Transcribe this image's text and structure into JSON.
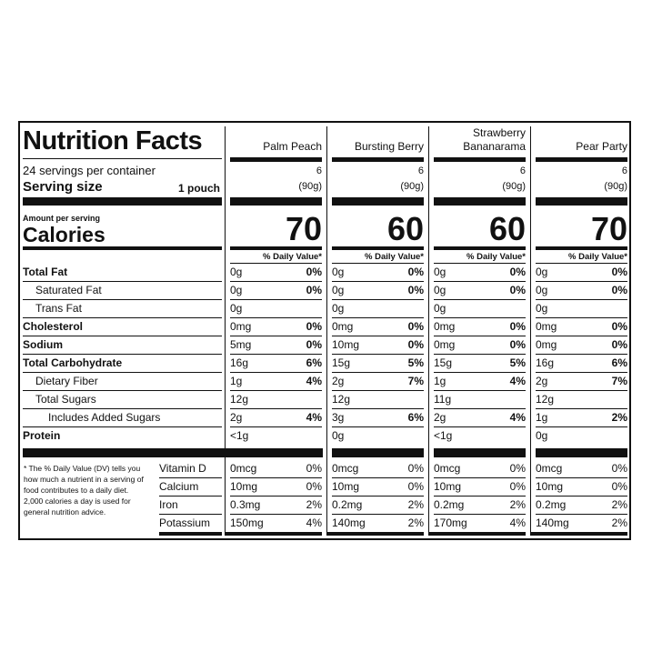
{
  "title": "Nutrition Facts",
  "servings_per_container": "24 servings per container",
  "serving_size_label": "Serving size",
  "serving_size_value": "1 pouch",
  "amount_per_serving": "Amount per serving",
  "calories_label": "Calories",
  "dv_header": "% Daily Value*",
  "nutrients": [
    {
      "label": "Total Fat",
      "bold": true,
      "indent": 0
    },
    {
      "label": "Saturated Fat",
      "bold": false,
      "indent": 1
    },
    {
      "label": "Trans Fat",
      "bold": false,
      "indent": 1
    },
    {
      "label": "Cholesterol",
      "bold": true,
      "indent": 0
    },
    {
      "label": "Sodium",
      "bold": true,
      "indent": 0
    },
    {
      "label": "Total Carbohydrate",
      "bold": true,
      "indent": 0
    },
    {
      "label": "Dietary Fiber",
      "bold": false,
      "indent": 1
    },
    {
      "label": "Total Sugars",
      "bold": false,
      "indent": 1
    },
    {
      "label": "Includes Added Sugars",
      "bold": false,
      "indent": 2
    },
    {
      "label": "Protein",
      "bold": true,
      "indent": 0
    }
  ],
  "vitamins": [
    "Vitamin D",
    "Calcium",
    "Iron",
    "Potassium"
  ],
  "footnote": "* The % Daily Value (DV) tells you how much a nutrient in a serving of food contributes to a daily diet. 2,000 calories a day is used for general nutrition advice.",
  "products": [
    {
      "name": "Palm Peach",
      "servings": "6",
      "serving_g": "(90g)",
      "calories": "70",
      "nutrients": [
        {
          "amount": "0g",
          "dv": "0%"
        },
        {
          "amount": "0g",
          "dv": "0%"
        },
        {
          "amount": "0g",
          "dv": ""
        },
        {
          "amount": "0mg",
          "dv": "0%"
        },
        {
          "amount": "5mg",
          "dv": "0%"
        },
        {
          "amount": "16g",
          "dv": "6%"
        },
        {
          "amount": "1g",
          "dv": "4%"
        },
        {
          "amount": "12g",
          "dv": ""
        },
        {
          "amount": "2g",
          "dv": "4%"
        },
        {
          "amount": "<1g",
          "dv": ""
        }
      ],
      "vitamins": [
        {
          "amount": "0mcg",
          "dv": "0%"
        },
        {
          "amount": "10mg",
          "dv": "0%"
        },
        {
          "amount": "0.3mg",
          "dv": "2%"
        },
        {
          "amount": "150mg",
          "dv": "4%"
        }
      ]
    },
    {
      "name": "Bursting Berry",
      "servings": "6",
      "serving_g": "(90g)",
      "calories": "60",
      "nutrients": [
        {
          "amount": "0g",
          "dv": "0%"
        },
        {
          "amount": "0g",
          "dv": "0%"
        },
        {
          "amount": "0g",
          "dv": ""
        },
        {
          "amount": "0mg",
          "dv": "0%"
        },
        {
          "amount": "10mg",
          "dv": "0%"
        },
        {
          "amount": "15g",
          "dv": "5%"
        },
        {
          "amount": "2g",
          "dv": "7%"
        },
        {
          "amount": "12g",
          "dv": ""
        },
        {
          "amount": "3g",
          "dv": "6%"
        },
        {
          "amount": "0g",
          "dv": ""
        }
      ],
      "vitamins": [
        {
          "amount": "0mcg",
          "dv": "0%"
        },
        {
          "amount": "10mg",
          "dv": "0%"
        },
        {
          "amount": "0.2mg",
          "dv": "2%"
        },
        {
          "amount": "140mg",
          "dv": "2%"
        }
      ]
    },
    {
      "name": "Strawberry Bananarama",
      "name_line1": "Strawberry",
      "name_line2": "Bananarama",
      "servings": "6",
      "serving_g": "(90g)",
      "calories": "60",
      "nutrients": [
        {
          "amount": "0g",
          "dv": "0%"
        },
        {
          "amount": "0g",
          "dv": "0%"
        },
        {
          "amount": "0g",
          "dv": ""
        },
        {
          "amount": "0mg",
          "dv": "0%"
        },
        {
          "amount": "0mg",
          "dv": "0%"
        },
        {
          "amount": "15g",
          "dv": "5%"
        },
        {
          "amount": "1g",
          "dv": "4%"
        },
        {
          "amount": "11g",
          "dv": ""
        },
        {
          "amount": "2g",
          "dv": "4%"
        },
        {
          "amount": "<1g",
          "dv": ""
        }
      ],
      "vitamins": [
        {
          "amount": "0mcg",
          "dv": "0%"
        },
        {
          "amount": "10mg",
          "dv": "0%"
        },
        {
          "amount": "0.2mg",
          "dv": "2%"
        },
        {
          "amount": "170mg",
          "dv": "4%"
        }
      ]
    },
    {
      "name": "Pear Party",
      "servings": "6",
      "serving_g": "(90g)",
      "calories": "70",
      "nutrients": [
        {
          "amount": "0g",
          "dv": "0%"
        },
        {
          "amount": "0g",
          "dv": "0%"
        },
        {
          "amount": "0g",
          "dv": ""
        },
        {
          "amount": "0mg",
          "dv": "0%"
        },
        {
          "amount": "0mg",
          "dv": "0%"
        },
        {
          "amount": "16g",
          "dv": "6%"
        },
        {
          "amount": "2g",
          "dv": "7%"
        },
        {
          "amount": "12g",
          "dv": ""
        },
        {
          "amount": "1g",
          "dv": "2%"
        },
        {
          "amount": "0g",
          "dv": ""
        }
      ],
      "vitamins": [
        {
          "amount": "0mcg",
          "dv": "0%"
        },
        {
          "amount": "10mg",
          "dv": "0%"
        },
        {
          "amount": "0.2mg",
          "dv": "2%"
        },
        {
          "amount": "140mg",
          "dv": "2%"
        }
      ]
    }
  ]
}
